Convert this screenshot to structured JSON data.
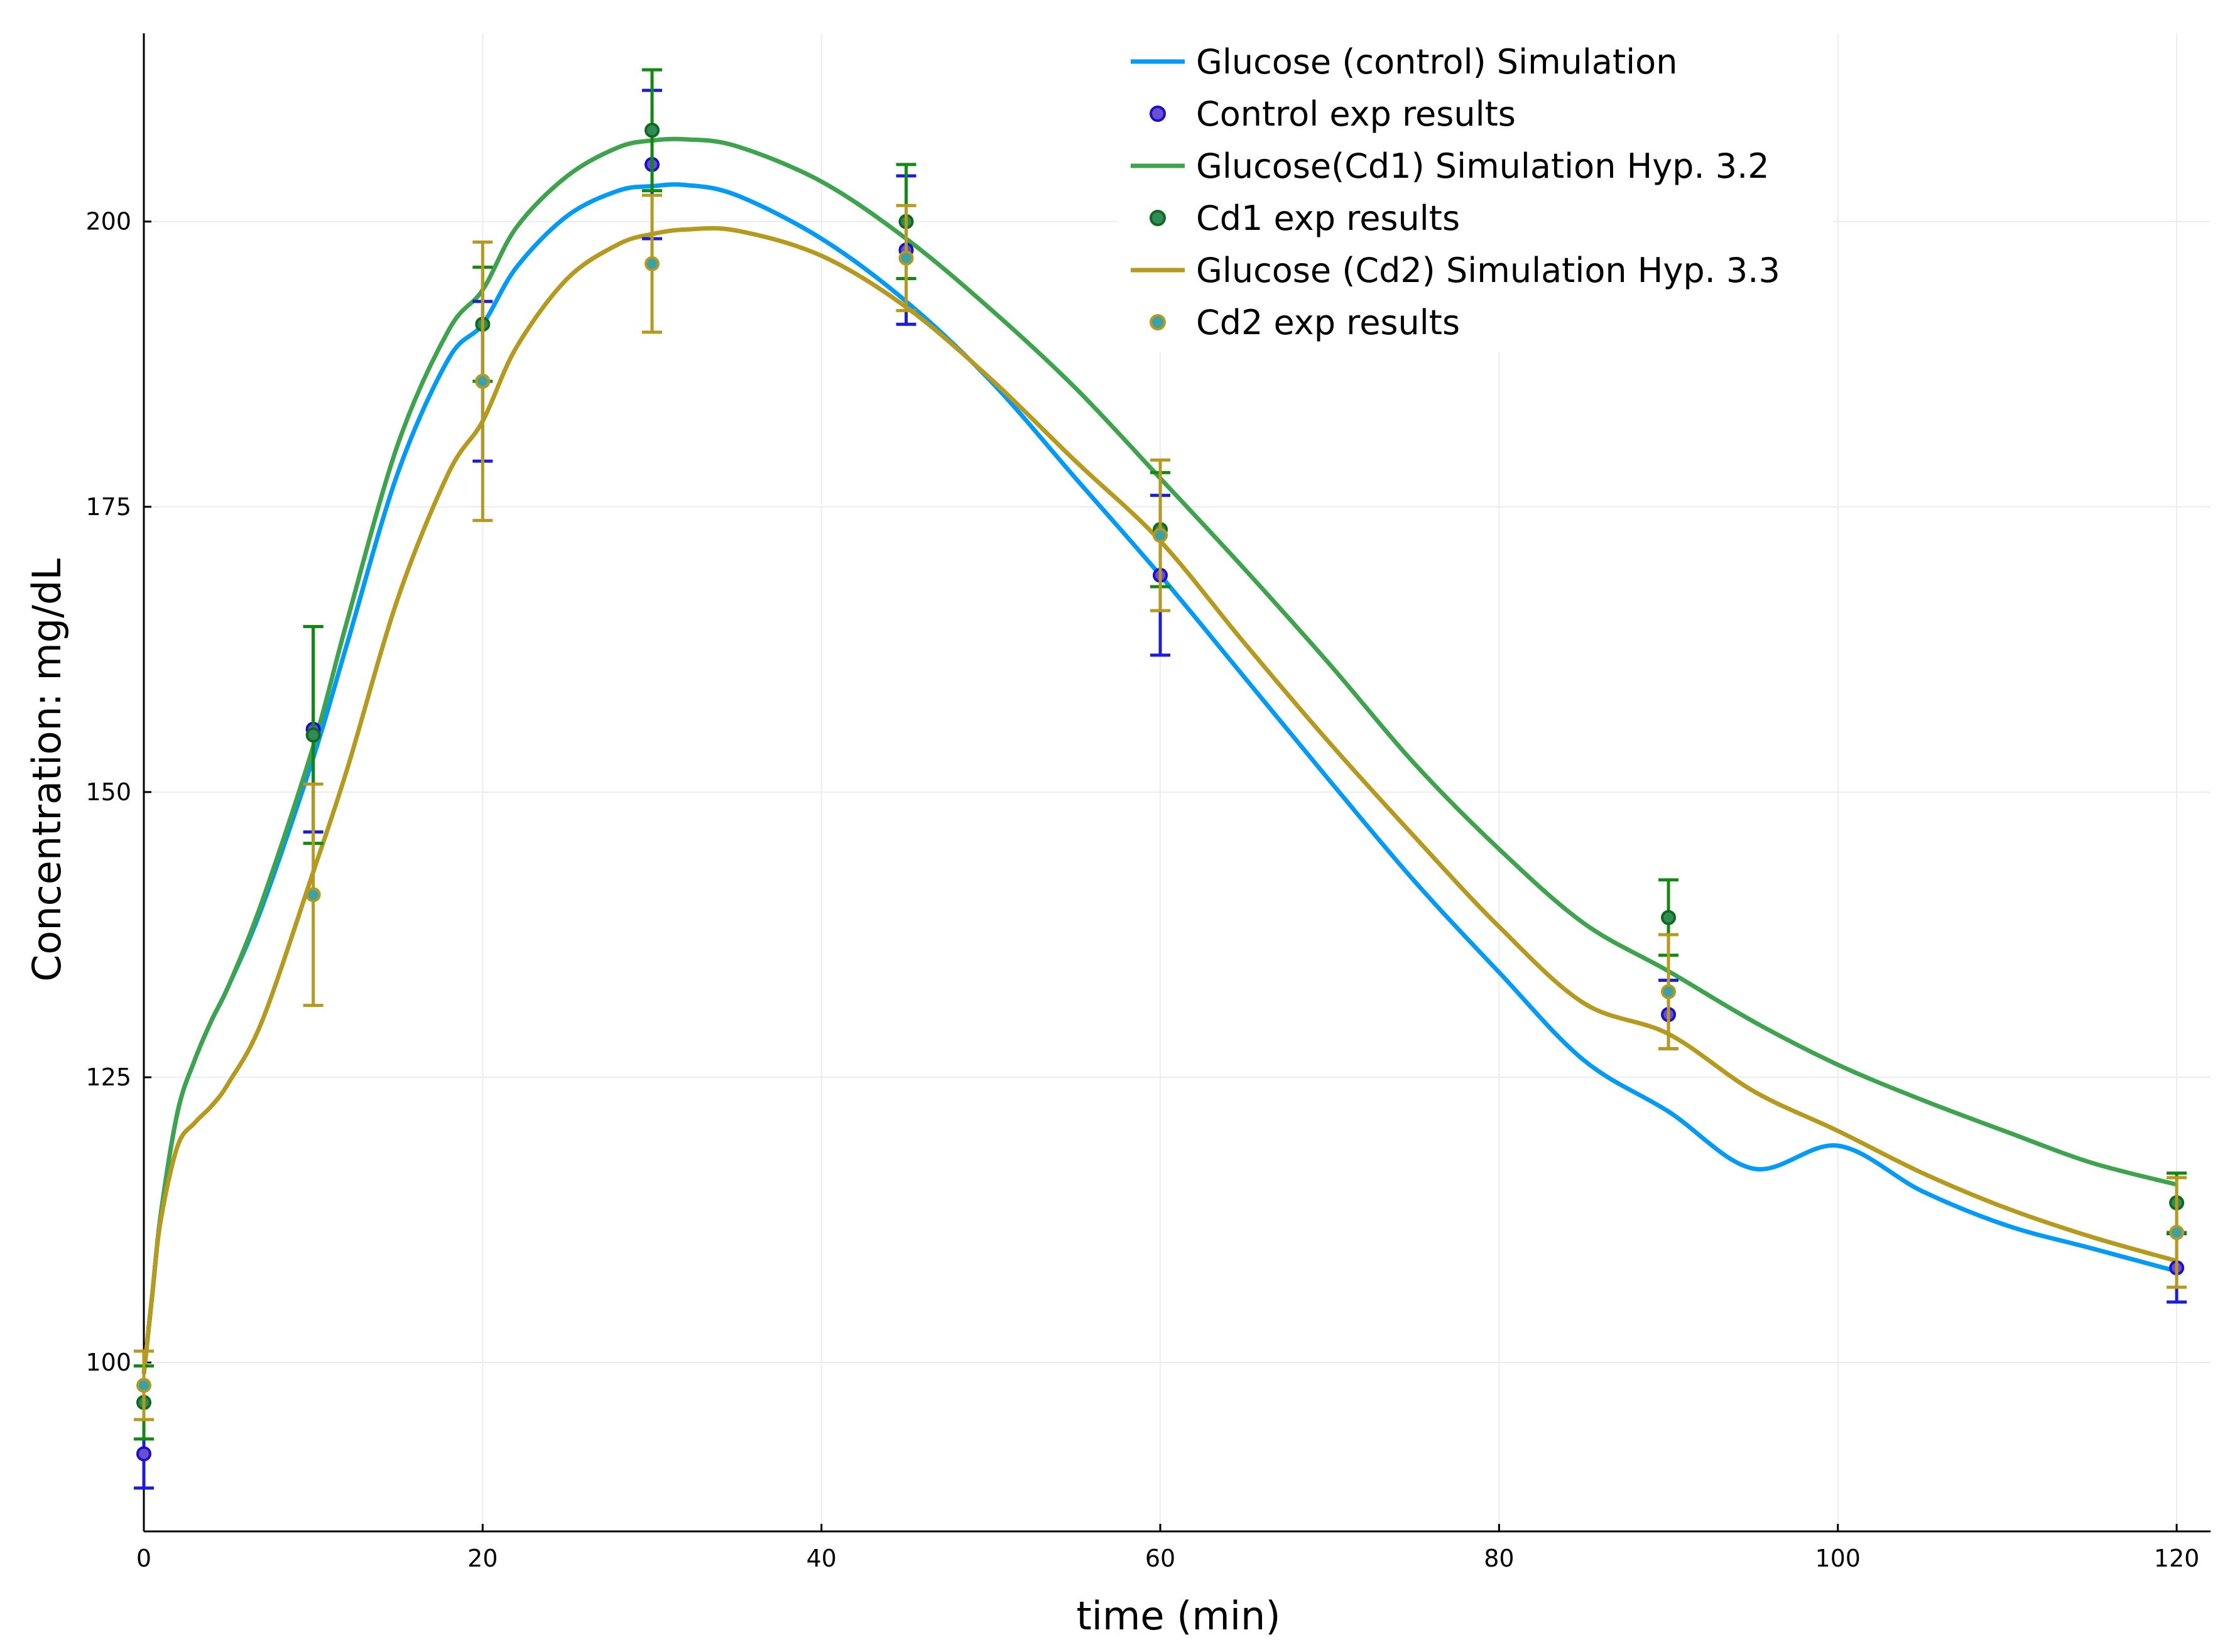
{
  "chart_data": {
    "type": "line",
    "title": "",
    "xlabel": "time (min)",
    "ylabel": "Concentration: mg/dL",
    "xlim": [
      0,
      122
    ],
    "ylim": [
      85.2,
      216.5
    ],
    "x_ticks": [
      0,
      20,
      40,
      60,
      80,
      100,
      120
    ],
    "y_ticks": [
      100,
      125,
      150,
      175,
      200
    ],
    "grid": true,
    "legend_position": "top-right",
    "colors": {
      "control": "#009af9",
      "cd1": "#3da44d",
      "cd2": "#b59a1e",
      "control_marker_fill": "#6a4fd0",
      "control_marker_edge": "#1a0fcf",
      "control_errbar": "#1c1cdc",
      "cd1_marker_fill": "#2f8b58",
      "cd1_marker_edge": "#0f6b1a",
      "cd1_errbar": "#128a12",
      "cd2_marker_fill": "#39a1a8",
      "cd2_marker_edge": "#b59a1e",
      "cd2_errbar": "#b59a1e",
      "grid": "#ececec",
      "axis": "#000000"
    },
    "series": [
      {
        "key": "control_sim",
        "name": "Glucose (control) Simulation",
        "kind": "line",
        "color_key": "control",
        "x": [
          0,
          0.5,
          1,
          2,
          3,
          4,
          5,
          7,
          10,
          12,
          15,
          18,
          20,
          22,
          25,
          28,
          30,
          32,
          35,
          40,
          45,
          50,
          55,
          60,
          65,
          70,
          75,
          80,
          85,
          90,
          95,
          100,
          105,
          110,
          115,
          120
        ],
        "y": [
          99,
          106,
          113,
          122,
          126.5,
          130,
          133,
          140,
          153,
          163,
          178,
          188,
          191,
          196,
          200.5,
          202.7,
          203.1,
          203.2,
          202.3,
          198.5,
          193,
          186,
          177.5,
          169,
          160,
          151,
          142.2,
          134.2,
          126.5,
          122,
          117,
          119,
          115,
          112,
          110,
          108
        ]
      },
      {
        "key": "control_exp",
        "name": "Control exp results",
        "kind": "scatter",
        "color_key": "control",
        "x": [
          0,
          10,
          20,
          30,
          45,
          60,
          90,
          120
        ],
        "y": [
          92,
          155.5,
          186,
          205,
          197.5,
          169,
          130.5,
          108.3
        ],
        "err": [
          3,
          9,
          7,
          6.5,
          6.5,
          7,
          3,
          3
        ]
      },
      {
        "key": "cd1_sim",
        "name": "Glucose(Cd1) Simulation Hyp. 3.2",
        "kind": "line",
        "color_key": "cd1",
        "x": [
          0,
          0.5,
          1,
          2,
          3,
          4,
          5,
          7,
          10,
          12,
          15,
          18,
          20,
          22,
          25,
          28,
          30,
          32,
          35,
          40,
          45,
          50,
          55,
          60,
          65,
          70,
          75,
          80,
          85,
          90,
          95,
          100,
          105,
          110,
          115,
          120
        ],
        "y": [
          99,
          106,
          113,
          122,
          126.5,
          130,
          133,
          140.5,
          154,
          165,
          180.5,
          190.5,
          194,
          199.5,
          204,
          206.5,
          207.1,
          207.2,
          206.6,
          203.5,
          198.5,
          192.3,
          185.4,
          177.5,
          169.5,
          161.2,
          152.5,
          145,
          138.5,
          134.3,
          129.9,
          126.1,
          123,
          120.2,
          117.5,
          115.6
        ]
      },
      {
        "key": "cd1_exp",
        "name": "Cd1 exp results",
        "kind": "scatter",
        "color_key": "cd1",
        "x": [
          0,
          10,
          20,
          30,
          45,
          60,
          90,
          120
        ],
        "y": [
          96.5,
          155,
          191,
          208,
          200,
          173,
          139,
          114
        ],
        "err": [
          3.2,
          9.5,
          5,
          5.3,
          5,
          5,
          3.3,
          2.6
        ]
      },
      {
        "key": "cd2_sim",
        "name": "Glucose (Cd2) Simulation Hyp. 3.3",
        "kind": "line",
        "color_key": "cd2",
        "x": [
          0,
          0.5,
          1,
          2,
          3,
          4,
          5,
          7,
          10,
          12,
          15,
          18,
          20,
          22,
          25,
          28,
          30,
          32,
          35,
          40,
          45,
          50,
          55,
          60,
          65,
          70,
          75,
          80,
          85,
          90,
          95,
          100,
          105,
          110,
          115,
          120
        ],
        "y": [
          99,
          106,
          112.5,
          119,
          121,
          122.5,
          124.5,
          130,
          143,
          152,
          167,
          178,
          182.5,
          189,
          195,
          198,
          198.9,
          199.3,
          199.2,
          197,
          192.5,
          186.2,
          179,
          172,
          163,
          154.3,
          146.1,
          138.2,
          131.5,
          128.8,
          123.8,
          120.3,
          116.6,
          113.5,
          111,
          108.9
        ]
      },
      {
        "key": "cd2_exp",
        "name": "Cd2 exp results",
        "kind": "scatter",
        "color_key": "cd2",
        "x": [
          0,
          10,
          20,
          30,
          45,
          60,
          90,
          120
        ],
        "y": [
          98,
          141,
          186,
          196.3,
          196.8,
          172.5,
          132.5,
          111.4
        ],
        "err": [
          3,
          9.7,
          12.2,
          6,
          4.6,
          6.6,
          5,
          4.8
        ]
      }
    ]
  }
}
